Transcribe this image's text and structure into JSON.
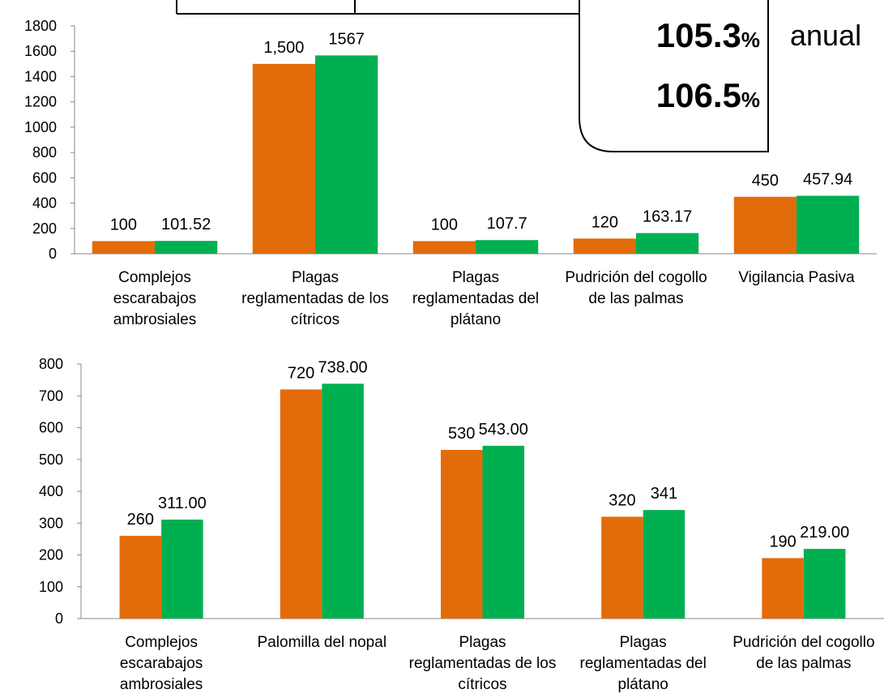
{
  "overlay": {
    "first": {
      "number": "105.3",
      "unit": "%"
    },
    "second": {
      "number": "106.5",
      "unit": "%"
    },
    "side": "anual"
  },
  "chart_data": [
    {
      "type": "bar",
      "categories": [
        "Complejos escarabajos ambrosiales",
        "Plagas reglamentadas de los cítricos",
        "Plagas reglamentadas del plátano",
        "Pudrición del cogollo de las palmas",
        "Vigilancia Pasiva"
      ],
      "series": [
        {
          "color": "#e36c0a",
          "values": [
            100,
            1500,
            100,
            120,
            450
          ],
          "value_labels": [
            "100",
            "1,500",
            "100",
            "120",
            "450"
          ]
        },
        {
          "color": "#00b050",
          "values": [
            101.52,
            1567,
            107.7,
            163.17,
            457.94
          ],
          "value_labels": [
            "101.52",
            "1567",
            "107.7",
            "163.17",
            "457.94"
          ]
        }
      ],
      "ylim": [
        0,
        1800
      ],
      "yticks": [
        0,
        200,
        400,
        600,
        800,
        1000,
        1200,
        1400,
        1600,
        1800
      ]
    },
    {
      "type": "bar",
      "categories": [
        "Complejos escarabajos ambrosiales",
        "Palomilla del nopal",
        "Plagas reglamentadas de los cítricos",
        "Plagas reglamentadas del plátano",
        "Pudrición del cogollo de las palmas"
      ],
      "series": [
        {
          "color": "#e36c0a",
          "values": [
            260,
            720,
            530,
            320,
            190
          ],
          "value_labels": [
            "260",
            "720",
            "530",
            "320",
            "190"
          ]
        },
        {
          "color": "#00b050",
          "values": [
            311,
            738,
            543,
            341,
            219
          ],
          "value_labels": [
            "311.00",
            "738.00",
            "543.00",
            "341",
            "219.00"
          ]
        }
      ],
      "ylim": [
        0,
        800
      ],
      "yticks": [
        0,
        100,
        200,
        300,
        400,
        500,
        600,
        700,
        800
      ]
    }
  ]
}
